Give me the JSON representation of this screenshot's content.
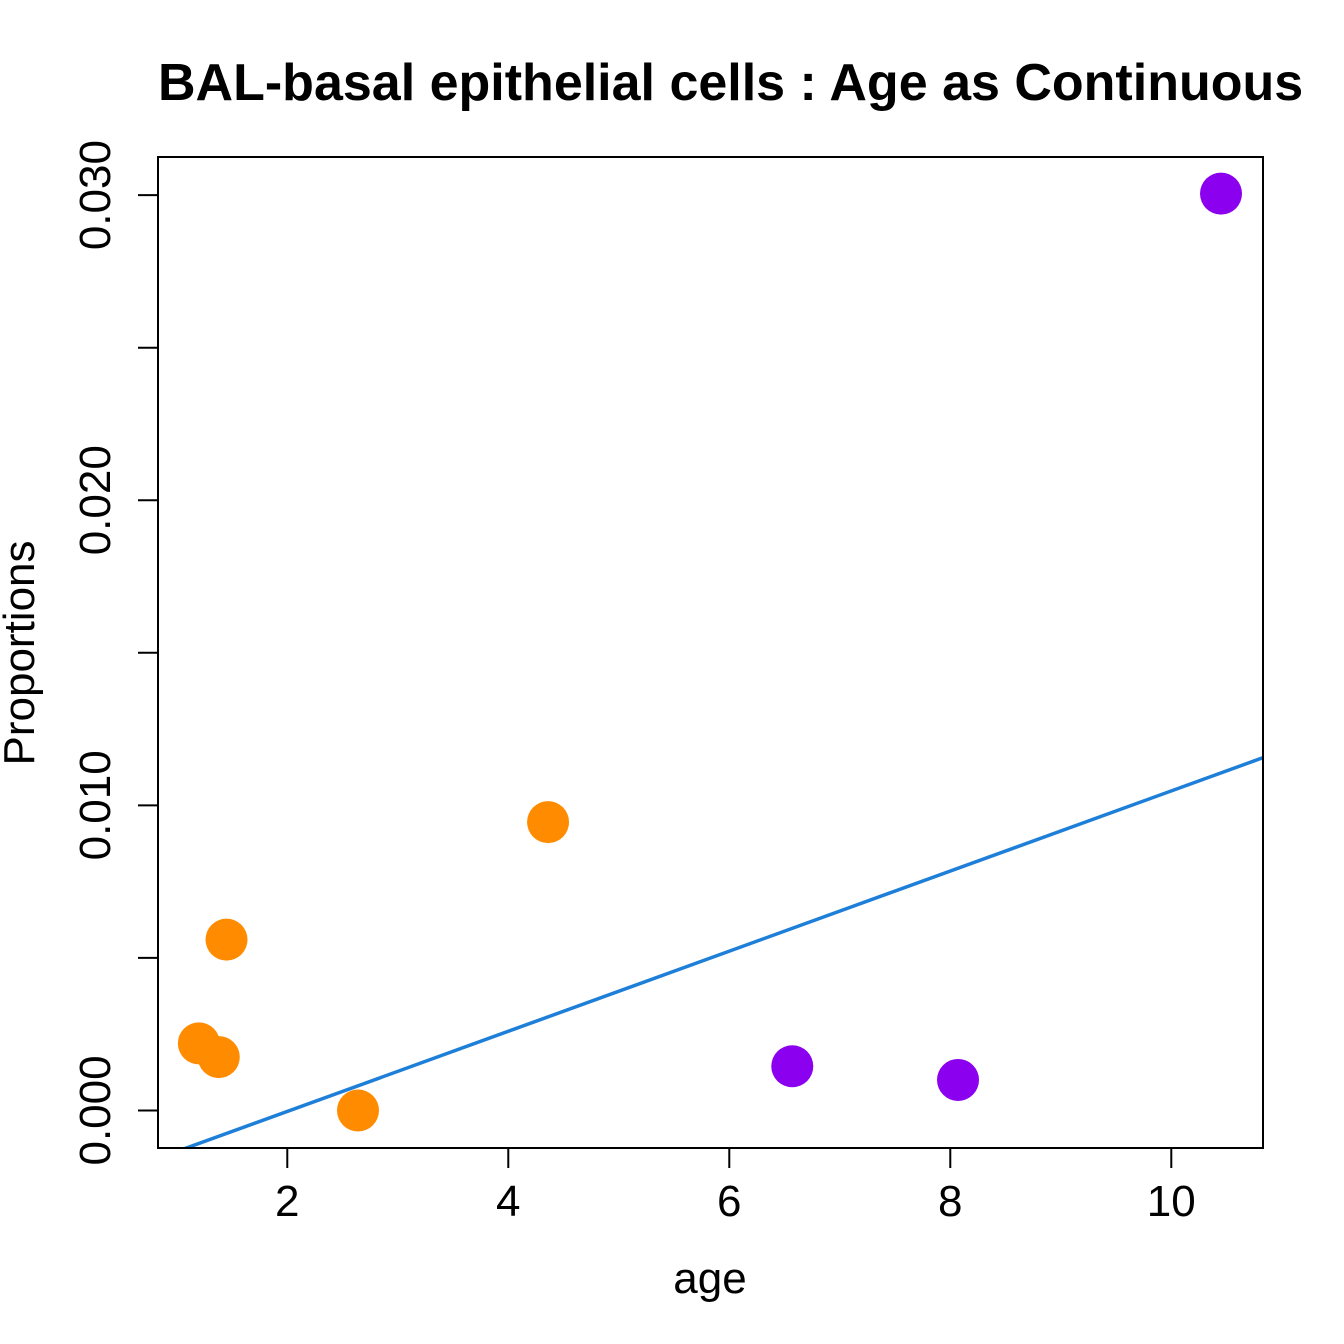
{
  "chart_data": {
    "type": "scatter",
    "title": "BAL-basal epithelial cells : Age as Continuous",
    "xlabel": "age",
    "ylabel": "Proportions",
    "xlim": [
      0.83,
      10.83
    ],
    "ylim": [
      -0.00123,
      0.03125
    ],
    "x_ticks": [
      2,
      4,
      6,
      8,
      10
    ],
    "x_tick_labels": [
      "2",
      "4",
      "6",
      "8",
      "10"
    ],
    "y_ticks": [
      0.0,
      0.005,
      0.01,
      0.015,
      0.02,
      0.025,
      0.03
    ],
    "y_tick_labels": [
      "0.000",
      "",
      "0.010",
      "",
      "0.020",
      "",
      "0.030"
    ],
    "grid": false,
    "points": [
      {
        "x": 1.2,
        "y": 0.0022,
        "color": "#FF8C00"
      },
      {
        "x": 1.38,
        "y": 0.00175,
        "color": "#FF8C00"
      },
      {
        "x": 1.45,
        "y": 0.0056,
        "color": "#FF8C00"
      },
      {
        "x": 2.64,
        "y": 0.0,
        "color": "#FF8C00"
      },
      {
        "x": 4.36,
        "y": 0.00945,
        "color": "#FF8C00"
      },
      {
        "x": 6.57,
        "y": 0.00145,
        "color": "#8B00EE"
      },
      {
        "x": 8.07,
        "y": 0.001,
        "color": "#8B00EE"
      },
      {
        "x": 10.45,
        "y": 0.03005,
        "color": "#8B00EE"
      }
    ],
    "fit_line": {
      "slope": 0.001313,
      "intercept": -0.002657,
      "color": "#1E7FD8"
    }
  }
}
